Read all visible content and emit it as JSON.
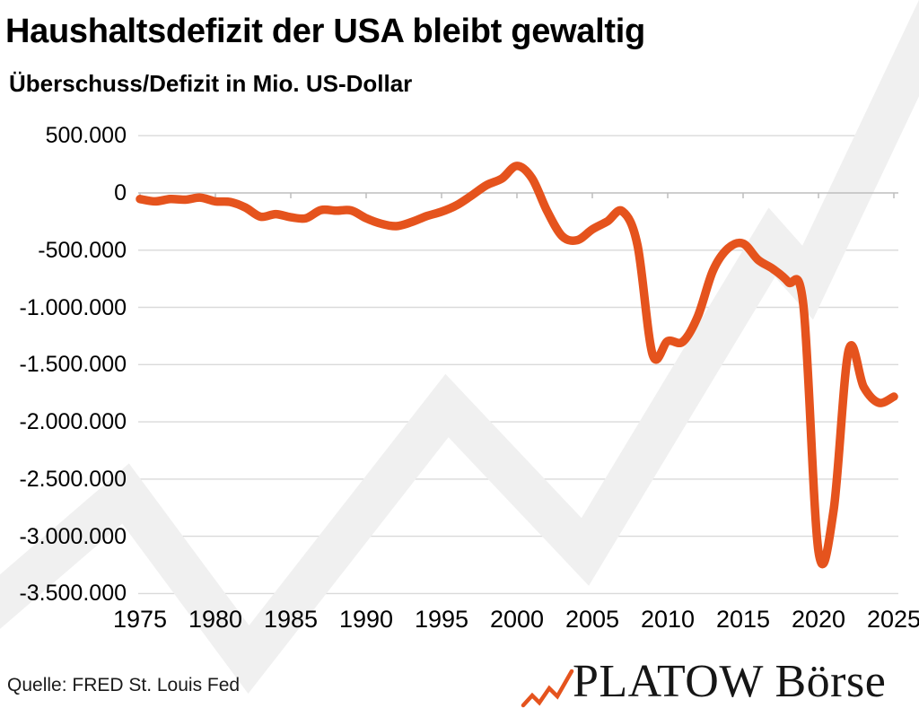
{
  "header": {
    "title": "Haushaltsdefizit der USA bleibt gewaltig",
    "subtitle": "Überschuss/Defizit in Mio. US-Dollar"
  },
  "chart_data": {
    "type": "line",
    "title": "Haushaltsdefizit der USA bleibt gewaltig",
    "subtitle": "Überschuss/Defizit in Mio. US-Dollar",
    "unit": "Mio. US-Dollar",
    "smoothed": true,
    "grid": "horizontal",
    "legend": "none",
    "xlim": [
      1975,
      2025
    ],
    "ylim": [
      -3500000,
      500000
    ],
    "x": [
      1975,
      1976,
      1977,
      1978,
      1979,
      1980,
      1981,
      1982,
      1983,
      1984,
      1985,
      1986,
      1987,
      1988,
      1989,
      1990,
      1991,
      1992,
      1993,
      1994,
      1995,
      1996,
      1997,
      1998,
      1999,
      2000,
      2001,
      2002,
      2003,
      2004,
      2005,
      2006,
      2007,
      2008,
      2009,
      2010,
      2011,
      2012,
      2013,
      2014,
      2015,
      2016,
      2017,
      2018,
      2019,
      2020,
      2021,
      2022,
      2023,
      2024,
      2025
    ],
    "series": [
      {
        "name": "Überschuss/Defizit in Mio. US-Dollar",
        "color": "#E5531D",
        "values": [
          -53242,
          -73732,
          -53659,
          -59185,
          -40726,
          -73830,
          -78968,
          -127977,
          -207802,
          -185367,
          -212308,
          -221227,
          -149730,
          -155178,
          -152639,
          -221036,
          -269238,
          -290321,
          -255051,
          -203186,
          -163952,
          -107431,
          -21884,
          69270,
          125610,
          236241,
          128236,
          -157758,
          -377585,
          -412727,
          -318346,
          -248181,
          -160701,
          -458553,
          -1412688,
          -1294373,
          -1299599,
          -1076573,
          -679775,
          -484793,
          -441960,
          -584651,
          -665446,
          -779137,
          -983816,
          -3131917,
          -2775535,
          -1375389,
          -1695152,
          -1832816,
          -1780000
        ]
      }
    ],
    "y_ticks": {
      "values": [
        500000,
        0,
        -500000,
        -1000000,
        -1500000,
        -2000000,
        -2500000,
        -3000000,
        -3500000
      ],
      "labels": [
        "500.000",
        "0",
        "-500.000",
        "-1.000.000",
        "-1.500.000",
        "-2.000.000",
        "-2.500.000",
        "-3.000.000",
        "-3.500.000"
      ]
    },
    "x_ticks": {
      "values": [
        1975,
        1980,
        1985,
        1990,
        1995,
        2000,
        2005,
        2010,
        2015,
        2020,
        2025
      ],
      "labels": [
        "1975",
        "1980",
        "1985",
        "1990",
        "1995",
        "2000",
        "2005",
        "2010",
        "2015",
        "2020",
        "2025"
      ]
    }
  },
  "footer": {
    "source": "Quelle: FRED St. Louis Fed",
    "logo_text": "PLATOW Börse"
  },
  "colors": {
    "line": "#E5531D",
    "grid": "#DADADA",
    "axis": "#BEBEBE",
    "watermark": "#F0F0F0",
    "text": "#000000"
  }
}
